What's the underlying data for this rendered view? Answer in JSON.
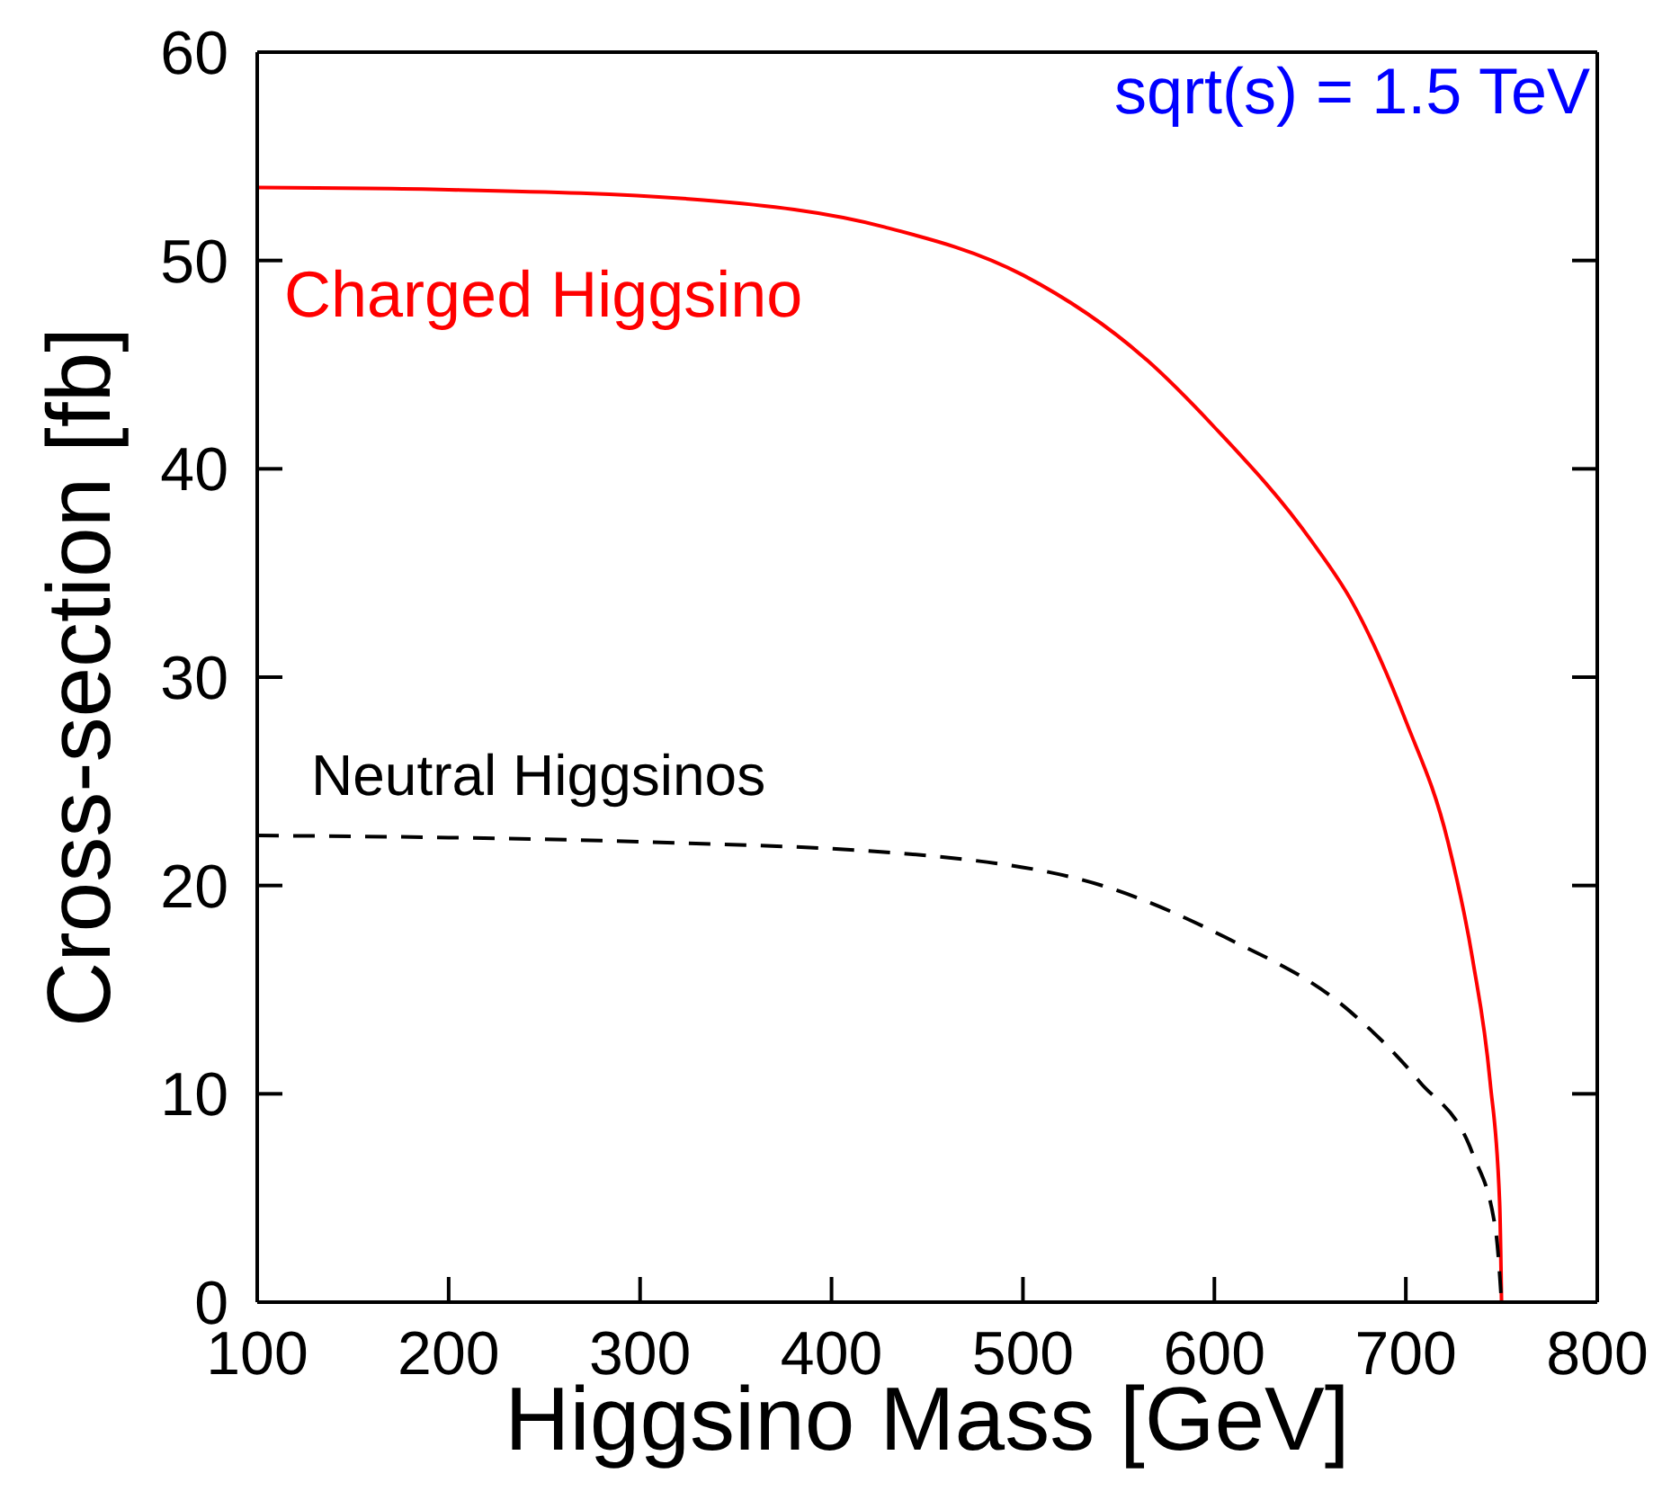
{
  "chart_data": {
    "type": "line",
    "xlabel": "Higgsino Mass  [GeV]",
    "ylabel": "Cross-section  [fb]",
    "annotations": [
      "sqrt(s) = 1.5 TeV"
    ],
    "xlim": [
      100,
      800
    ],
    "xticks": [
      100,
      200,
      300,
      400,
      500,
      600,
      700,
      800
    ],
    "ylim": [
      0,
      60
    ],
    "yticks": [
      0,
      10,
      20,
      30,
      40,
      50,
      60
    ],
    "marker": "none",
    "series": [
      {
        "name": "Charged Higgsino",
        "color": "#ff0000",
        "line_style": "solid",
        "x": [
          100,
          200,
          333,
          428,
          500,
          565,
          600,
          651,
          672,
          700,
          722,
          735,
          744,
          749,
          750
        ],
        "values": [
          53.5,
          53.4,
          52.9,
          51.6,
          49.3,
          45.2,
          42,
          36.5,
          33.6,
          27.9,
          22.1,
          16.4,
          10.6,
          4.8,
          0
        ]
      },
      {
        "name": "Neutral Higgsinos",
        "color": "#000000",
        "line_style": "dashed",
        "x": [
          100,
          200,
          300,
          454,
          548,
          606,
          669,
          707,
          735,
          747,
          750
        ],
        "values": [
          22.4,
          22.3,
          22.1,
          21.4,
          19.8,
          17.5,
          14.1,
          10.6,
          7.1,
          3.4,
          0
        ]
      }
    ]
  }
}
